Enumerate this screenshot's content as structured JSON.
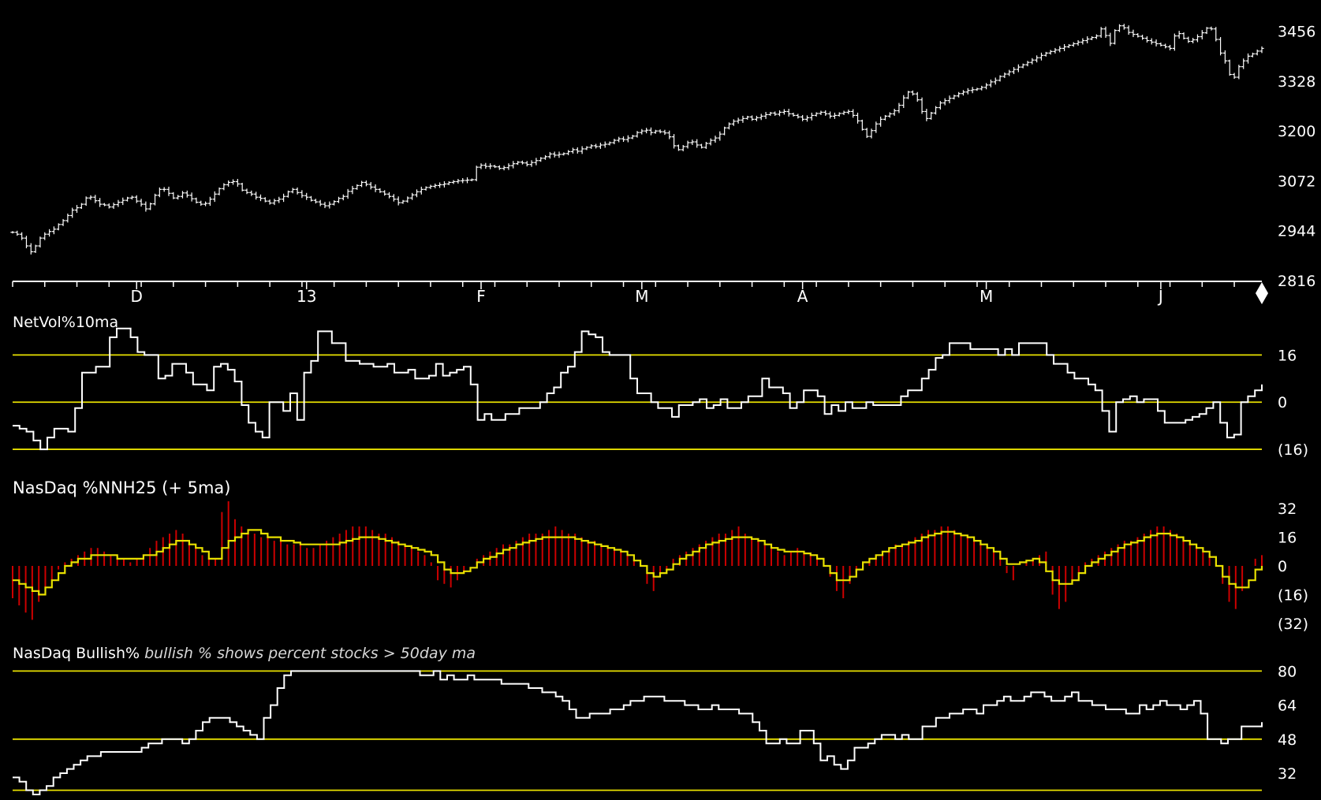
{
  "colors": {
    "background": "#000000",
    "price": "#ffffff",
    "text": "#ffffff",
    "reference_line": "#e8e000",
    "moving_average": "#e8e000",
    "histogram": "#cc0000",
    "caption": "#d8d8d8"
  },
  "chart_data": [
    {
      "type": "line",
      "name": "price",
      "style": "ohlc-bar",
      "title": "",
      "yticks": [
        "3456",
        "3328",
        "3200",
        "3072",
        "2944",
        "2816"
      ],
      "ylim": [
        2816,
        3520
      ],
      "x_month_labels": [
        {
          "label": "D",
          "index": 27
        },
        {
          "label": "13",
          "index": 64
        },
        {
          "label": "F",
          "index": 102
        },
        {
          "label": "M",
          "index": 137
        },
        {
          "label": "A",
          "index": 172
        },
        {
          "label": "M",
          "index": 212
        },
        {
          "label": "J",
          "index": 250
        }
      ],
      "values": [
        2940,
        2935,
        2925,
        2905,
        2890,
        2905,
        2925,
        2935,
        2942,
        2948,
        2960,
        2970,
        2983,
        2997,
        3003,
        3012,
        3028,
        3030,
        3021,
        3012,
        3010,
        3005,
        3011,
        3017,
        3022,
        3028,
        3030,
        3020,
        3012,
        3000,
        3013,
        3035,
        3050,
        3050,
        3040,
        3028,
        3032,
        3041,
        3035,
        3026,
        3017,
        3012,
        3014,
        3025,
        3038,
        3052,
        3062,
        3068,
        3070,
        3064,
        3048,
        3042,
        3038,
        3030,
        3027,
        3020,
        3015,
        3021,
        3025,
        3032,
        3044,
        3050,
        3042,
        3034,
        3030,
        3022,
        3018,
        3012,
        3008,
        3012,
        3019,
        3027,
        3032,
        3045,
        3052,
        3060,
        3068,
        3063,
        3056,
        3050,
        3044,
        3038,
        3032,
        3025,
        3016,
        3020,
        3028,
        3036,
        3044,
        3050,
        3055,
        3058,
        3060,
        3062,
        3064,
        3068,
        3070,
        3072,
        3073,
        3074,
        3075,
        3107,
        3112,
        3109,
        3110,
        3108,
        3104,
        3106,
        3111,
        3116,
        3120,
        3118,
        3114,
        3119,
        3124,
        3130,
        3134,
        3141,
        3138,
        3140,
        3142,
        3147,
        3152,
        3148,
        3154,
        3158,
        3162,
        3160,
        3164,
        3166,
        3170,
        3176,
        3180,
        3178,
        3182,
        3187,
        3196,
        3200,
        3202,
        3196,
        3200,
        3198,
        3195,
        3185,
        3162,
        3152,
        3160,
        3170,
        3172,
        3164,
        3158,
        3168,
        3176,
        3182,
        3192,
        3208,
        3218,
        3225,
        3228,
        3232,
        3236,
        3230,
        3234,
        3238,
        3242,
        3246,
        3243,
        3248,
        3250,
        3244,
        3240,
        3236,
        3230,
        3234,
        3240,
        3245,
        3248,
        3244,
        3238,
        3240,
        3245,
        3248,
        3250,
        3240,
        3226,
        3204,
        3186,
        3201,
        3218,
        3230,
        3238,
        3244,
        3252,
        3266,
        3285,
        3300,
        3295,
        3280,
        3250,
        3232,
        3246,
        3260,
        3272,
        3278,
        3284,
        3290,
        3296,
        3300,
        3304,
        3306,
        3308,
        3312,
        3318,
        3326,
        3330,
        3340,
        3346,
        3352,
        3358,
        3364,
        3370,
        3376,
        3382,
        3388,
        3394,
        3400,
        3404,
        3408,
        3412,
        3416,
        3420,
        3424,
        3428,
        3432,
        3436,
        3440,
        3444,
        3462,
        3445,
        3425,
        3458,
        3470,
        3465,
        3453,
        3448,
        3443,
        3438,
        3432,
        3428,
        3424,
        3420,
        3416,
        3412,
        3444,
        3450,
        3438,
        3430,
        3434,
        3442,
        3452,
        3464,
        3462,
        3435,
        3400,
        3380,
        3345,
        3338,
        3365,
        3380,
        3392,
        3398,
        3405,
        3412
      ],
      "annotation_hint": "daily OHLC bars; values are approximate closes"
    },
    {
      "type": "line",
      "name": "netvol",
      "title": "NetVol%10ma",
      "yticks": [
        "16",
        "0",
        "(16)"
      ],
      "reference_lines": [
        16,
        0,
        -16
      ],
      "ylim": [
        -24,
        30
      ],
      "values": [
        -8,
        -9,
        -10,
        -13,
        -16,
        -12,
        -9,
        -9,
        -10,
        -2,
        10,
        10,
        12,
        12,
        22,
        25,
        25,
        22,
        17,
        16,
        16,
        8,
        9,
        13,
        13,
        10,
        6,
        6,
        4,
        12,
        13,
        11,
        7,
        -1,
        -7,
        -10,
        -12,
        0,
        0,
        -3,
        3,
        -6,
        10,
        14,
        24,
        24,
        20,
        20,
        14,
        14,
        13,
        13,
        12,
        12,
        13,
        10,
        10,
        11,
        8,
        8,
        9,
        13,
        9,
        10,
        11,
        12,
        6,
        -6,
        -4,
        -6,
        -6,
        -4,
        -4,
        -2,
        -2,
        -2,
        0,
        3,
        5,
        10,
        12,
        17,
        24,
        23,
        22,
        17,
        16,
        16,
        16,
        8,
        3,
        3,
        0,
        -2,
        -2,
        -5,
        -1,
        -1,
        0,
        1,
        -2,
        -1,
        1,
        -2,
        -2,
        0,
        2,
        2,
        8,
        5,
        5,
        3,
        -2,
        0,
        4,
        4,
        2,
        -4,
        -1,
        -3,
        0,
        -2,
        -2,
        0,
        -1,
        -1,
        -1,
        -1,
        2,
        4,
        4,
        8,
        11,
        15,
        16,
        20,
        20,
        20,
        18,
        18,
        18,
        18,
        16,
        18,
        16,
        20,
        20,
        20,
        20,
        16,
        13,
        13,
        10,
        8,
        8,
        6,
        4,
        -3,
        -10,
        0,
        1,
        2,
        0,
        1,
        1,
        -3,
        -7,
        -7,
        -7,
        -6,
        -5,
        -4,
        -2,
        0,
        -7,
        -12,
        -11,
        0,
        2,
        4,
        6
      ],
      "annotation_hint": "approximate stepped oscillator values"
    },
    {
      "type": "bar",
      "name": "nnh",
      "title": "NasDaq %NNH25",
      "subtitle": "(+ 5ma)",
      "yticks": [
        "32",
        "16",
        "0",
        "(16)",
        "(32)"
      ],
      "ylim": [
        -36,
        36
      ],
      "bars": [
        -18,
        -22,
        -26,
        -30,
        -20,
        -12,
        -8,
        -2,
        2,
        4,
        6,
        8,
        10,
        10,
        8,
        6,
        4,
        4,
        2,
        4,
        6,
        10,
        14,
        16,
        18,
        20,
        18,
        14,
        10,
        6,
        4,
        4,
        30,
        36,
        26,
        22,
        20,
        18,
        16,
        16,
        14,
        14,
        12,
        12,
        12,
        10,
        10,
        12,
        14,
        16,
        18,
        20,
        22,
        22,
        22,
        20,
        18,
        18,
        16,
        14,
        12,
        10,
        8,
        6,
        2,
        -8,
        -10,
        -12,
        -8,
        -4,
        0,
        4,
        6,
        8,
        10,
        12,
        12,
        14,
        16,
        18,
        18,
        18,
        20,
        22,
        20,
        18,
        18,
        16,
        14,
        14,
        12,
        10,
        10,
        8,
        6,
        4,
        0,
        -10,
        -14,
        -6,
        -2,
        4,
        6,
        8,
        10,
        12,
        14,
        16,
        18,
        18,
        20,
        22,
        18,
        16,
        14,
        12,
        10,
        8,
        6,
        8,
        10,
        8,
        6,
        4,
        0,
        -6,
        -14,
        -18,
        -10,
        -4,
        2,
        4,
        6,
        8,
        10,
        12,
        12,
        14,
        16,
        18,
        20,
        20,
        22,
        22,
        20,
        18,
        16,
        14,
        12,
        10,
        8,
        6,
        -4,
        -8,
        0,
        2,
        4,
        6,
        8,
        -16,
        -24,
        -20,
        -10,
        -4,
        2,
        4,
        6,
        8,
        10,
        12,
        14,
        14,
        16,
        18,
        20,
        22,
        22,
        20,
        18,
        16,
        14,
        12,
        10,
        6,
        2,
        -10,
        -20,
        -24,
        -14,
        0,
        4,
        6
      ],
      "moving_average": [
        -8,
        -10,
        -12,
        -14,
        -16,
        -12,
        -8,
        -4,
        0,
        2,
        4,
        4,
        6,
        6,
        6,
        6,
        4,
        4,
        4,
        4,
        6,
        6,
        8,
        10,
        12,
        14,
        14,
        12,
        10,
        8,
        4,
        4,
        10,
        14,
        16,
        18,
        20,
        20,
        18,
        16,
        16,
        14,
        14,
        13,
        12,
        12,
        12,
        12,
        12,
        12,
        13,
        14,
        15,
        16,
        16,
        16,
        15,
        14,
        13,
        12,
        11,
        10,
        9,
        8,
        6,
        2,
        -2,
        -4,
        -4,
        -3,
        -1,
        2,
        4,
        5,
        7,
        9,
        10,
        12,
        13,
        14,
        15,
        16,
        16,
        16,
        16,
        16,
        15,
        14,
        13,
        12,
        11,
        10,
        9,
        8,
        6,
        3,
        0,
        -4,
        -6,
        -4,
        -2,
        1,
        4,
        6,
        8,
        10,
        12,
        13,
        14,
        15,
        16,
        16,
        16,
        15,
        14,
        12,
        10,
        9,
        8,
        8,
        8,
        7,
        6,
        4,
        0,
        -4,
        -8,
        -8,
        -6,
        -2,
        2,
        4,
        6,
        8,
        10,
        11,
        12,
        13,
        14,
        16,
        17,
        18,
        19,
        19,
        18,
        17,
        16,
        14,
        12,
        10,
        8,
        4,
        1,
        1,
        2,
        3,
        4,
        2,
        -3,
        -8,
        -10,
        -10,
        -8,
        -4,
        0,
        2,
        4,
        6,
        8,
        10,
        12,
        13,
        14,
        16,
        17,
        18,
        18,
        17,
        16,
        14,
        12,
        10,
        8,
        5,
        0,
        -6,
        -10,
        -12,
        -12,
        -8,
        -2,
        0
      ],
      "annotation_hint": "red histogram bars with yellow 5-period moving average"
    },
    {
      "type": "line",
      "name": "bullish",
      "title": "NasDaq Bullish%",
      "subtitle": "bullish % shows percent stocks > 50day ma",
      "yticks": [
        "80",
        "64",
        "48",
        "32"
      ],
      "reference_lines": [
        80,
        48,
        24
      ],
      "ylim": [
        22,
        82
      ],
      "values": [
        30,
        28,
        24,
        22,
        24,
        26,
        30,
        32,
        34,
        36,
        38,
        40,
        40,
        42,
        42,
        42,
        42,
        42,
        42,
        44,
        46,
        46,
        48,
        48,
        48,
        46,
        48,
        52,
        56,
        58,
        58,
        58,
        56,
        54,
        52,
        50,
        48,
        58,
        64,
        72,
        78,
        80,
        80,
        80,
        80,
        80,
        80,
        80,
        80,
        80,
        80,
        80,
        80,
        80,
        80,
        80,
        80,
        80,
        80,
        80,
        78,
        78,
        80,
        76,
        78,
        76,
        76,
        78,
        76,
        76,
        76,
        76,
        74,
        74,
        74,
        74,
        72,
        72,
        70,
        70,
        68,
        66,
        62,
        58,
        58,
        60,
        60,
        60,
        62,
        62,
        64,
        66,
        66,
        68,
        68,
        68,
        66,
        66,
        66,
        64,
        64,
        62,
        62,
        64,
        62,
        62,
        62,
        60,
        60,
        56,
        52,
        46,
        46,
        48,
        46,
        46,
        52,
        52,
        46,
        38,
        40,
        36,
        34,
        38,
        44,
        44,
        46,
        48,
        50,
        50,
        48,
        50,
        48,
        48,
        54,
        54,
        58,
        58,
        60,
        60,
        62,
        62,
        60,
        64,
        64,
        66,
        68,
        66,
        66,
        68,
        70,
        70,
        68,
        66,
        66,
        68,
        70,
        66,
        66,
        64,
        64,
        62,
        62,
        62,
        60,
        60,
        64,
        62,
        64,
        66,
        64,
        64,
        62,
        64,
        66,
        60,
        48,
        48,
        46,
        48,
        48,
        54,
        54,
        54,
        56
      ],
      "annotation_hint": "stepped percentage line"
    }
  ]
}
